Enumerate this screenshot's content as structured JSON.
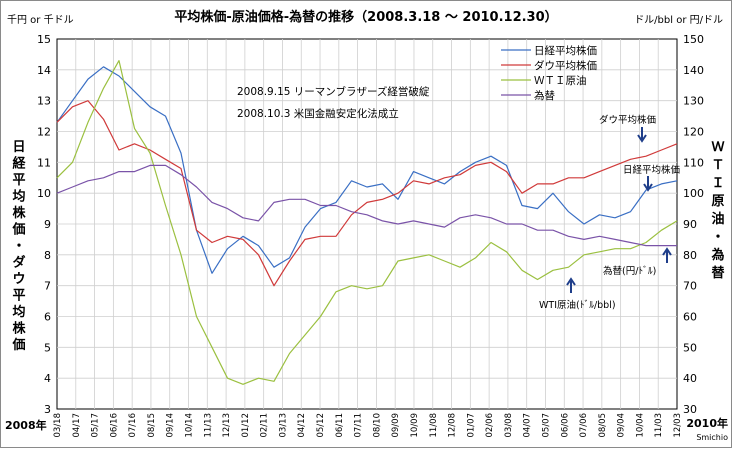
{
  "chart_data": {
    "type": "line",
    "title": "平均株価-原油価格-為替の推移（2008.3.18 ～ 2010.12.30）",
    "left_unit": "千円 or 千ドル",
    "right_unit": "ドル/bbl or 円/ドル",
    "ylabel_left": "日経平均株価・ダウ平均株価",
    "ylabel_right": "ＷＴＩ原油・為替",
    "y_left_range": [
      3,
      15
    ],
    "y_right_range": [
      30,
      150
    ],
    "y_left_ticks": [
      "3",
      "4",
      "5",
      "6",
      "7",
      "8",
      "9",
      "10",
      "11",
      "12",
      "13",
      "14",
      "15"
    ],
    "y_right_ticks": [
      "30",
      "40",
      "50",
      "60",
      "70",
      "80",
      "90",
      "100",
      "110",
      "120",
      "130",
      "140",
      "150"
    ],
    "x_start_label": "2008年",
    "x_end_label": "2010年",
    "credit": "Smichio",
    "x_ticks": [
      "03/18",
      "04/17",
      "05/17",
      "06/16",
      "07/16",
      "08/15",
      "09/14",
      "10/14",
      "11/13",
      "12/13",
      "01/12",
      "02/11",
      "03/13",
      "04/12",
      "05/12",
      "06/11",
      "07/11",
      "08/10",
      "09/09",
      "10/09",
      "11/08",
      "12/08",
      "01/07",
      "02/06",
      "03/08",
      "04/07",
      "05/07",
      "06/06",
      "07/06",
      "08/05",
      "09/04",
      "10/04",
      "11/03",
      "12/03"
    ],
    "legend": [
      "日経平均株価",
      "ダウ平均株価",
      "ＷＴＩ原油",
      "為替"
    ],
    "notes": [
      "2008.9.15 リーマンブラザーズ経営破綻",
      "2008.10.3 米国金融安定化法成立"
    ],
    "annotations": {
      "dow": "ダウ平均株価",
      "nikkei": "日経平均株価",
      "wti": "WTI原油(ﾄﾞﾙ/bbl)",
      "fx": "為替(円/ﾄﾞﾙ)"
    },
    "grid": true,
    "legend_position": "top-right",
    "series": [
      {
        "name": "日経平均株価",
        "axis": "left",
        "color": "#3a6fc4",
        "values": [
          12.3,
          13.0,
          13.7,
          14.1,
          13.8,
          13.3,
          12.8,
          12.5,
          11.3,
          8.8,
          7.4,
          8.2,
          8.6,
          8.3,
          7.6,
          7.9,
          8.9,
          9.5,
          9.7,
          10.4,
          10.2,
          10.3,
          9.8,
          10.7,
          10.5,
          10.3,
          10.7,
          11.0,
          11.2,
          10.9,
          9.6,
          9.5,
          10.0,
          9.4,
          9.0,
          9.3,
          9.2,
          9.4,
          10.1,
          10.3,
          10.4
        ]
      },
      {
        "name": "ダウ平均株価",
        "axis": "left",
        "color": "#d03a3a",
        "values": [
          12.3,
          12.8,
          13.0,
          12.4,
          11.4,
          11.6,
          11.4,
          11.1,
          10.8,
          8.8,
          8.4,
          8.6,
          8.5,
          8.0,
          7.0,
          7.8,
          8.5,
          8.6,
          8.6,
          9.3,
          9.7,
          9.8,
          10.0,
          10.4,
          10.3,
          10.5,
          10.6,
          10.9,
          11.0,
          10.7,
          10.0,
          10.3,
          10.3,
          10.5,
          10.5,
          10.7,
          10.9,
          11.1,
          11.2,
          11.4,
          11.6
        ]
      },
      {
        "name": "ＷＴＩ原油",
        "axis": "right",
        "color": "#9bc040",
        "values": [
          105,
          110,
          123,
          134,
          143,
          121,
          113,
          96,
          80,
          60,
          50,
          40,
          38,
          40,
          39,
          48,
          54,
          60,
          68,
          70,
          69,
          70,
          78,
          79,
          80,
          78,
          76,
          79,
          84,
          81,
          75,
          72,
          75,
          76,
          80,
          81,
          82,
          82,
          84,
          88,
          91
        ]
      },
      {
        "name": "為替",
        "axis": "right",
        "color": "#7a53a8",
        "values": [
          100,
          102,
          104,
          105,
          107,
          107,
          109,
          109,
          106,
          102,
          97,
          95,
          92,
          91,
          97,
          98,
          98,
          96,
          96,
          94,
          93,
          91,
          90,
          91,
          90,
          89,
          92,
          93,
          92,
          90,
          90,
          88,
          88,
          86,
          85,
          86,
          85,
          84,
          83,
          83,
          83
        ]
      }
    ]
  }
}
